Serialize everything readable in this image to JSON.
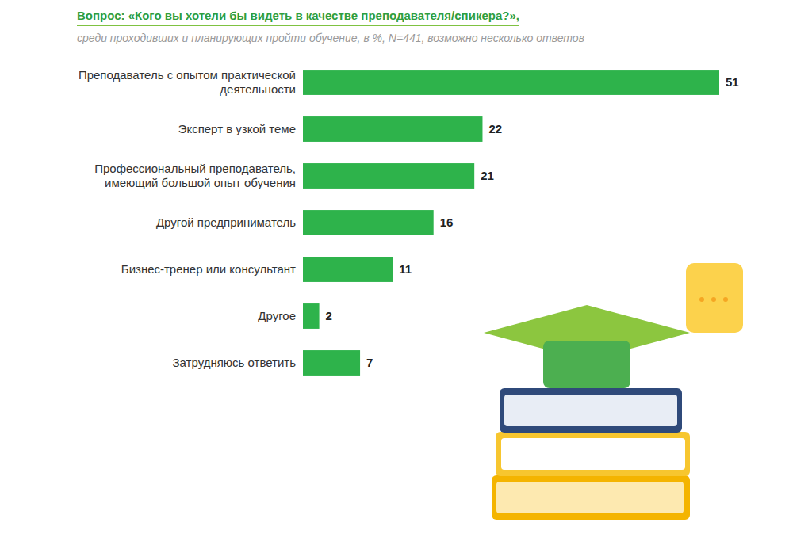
{
  "chart_data": {
    "type": "bar",
    "orientation": "horizontal",
    "title": "Вопрос: «Кого вы хотели бы видеть в качестве преподавателя/спикера?»,",
    "subtitle": "среди проходивших и планирующих пройти обучение, в %, N=441, возможно несколько ответов",
    "categories": [
      "Преподаватель с опытом практической деятельности",
      "Эксперт в узкой теме",
      "Профессиональный преподаватель, имеющий большой опыт обучения",
      "Другой предприниматель",
      "Бизнес-тренер или консультант",
      "Другое",
      "Затрудняюсь ответить"
    ],
    "values": [
      51,
      22,
      21,
      16,
      11,
      2,
      7
    ],
    "color": "#2eb34b",
    "xlim": [
      0,
      51
    ],
    "grid": false,
    "data_labels": true,
    "tick_labels": "y"
  }
}
